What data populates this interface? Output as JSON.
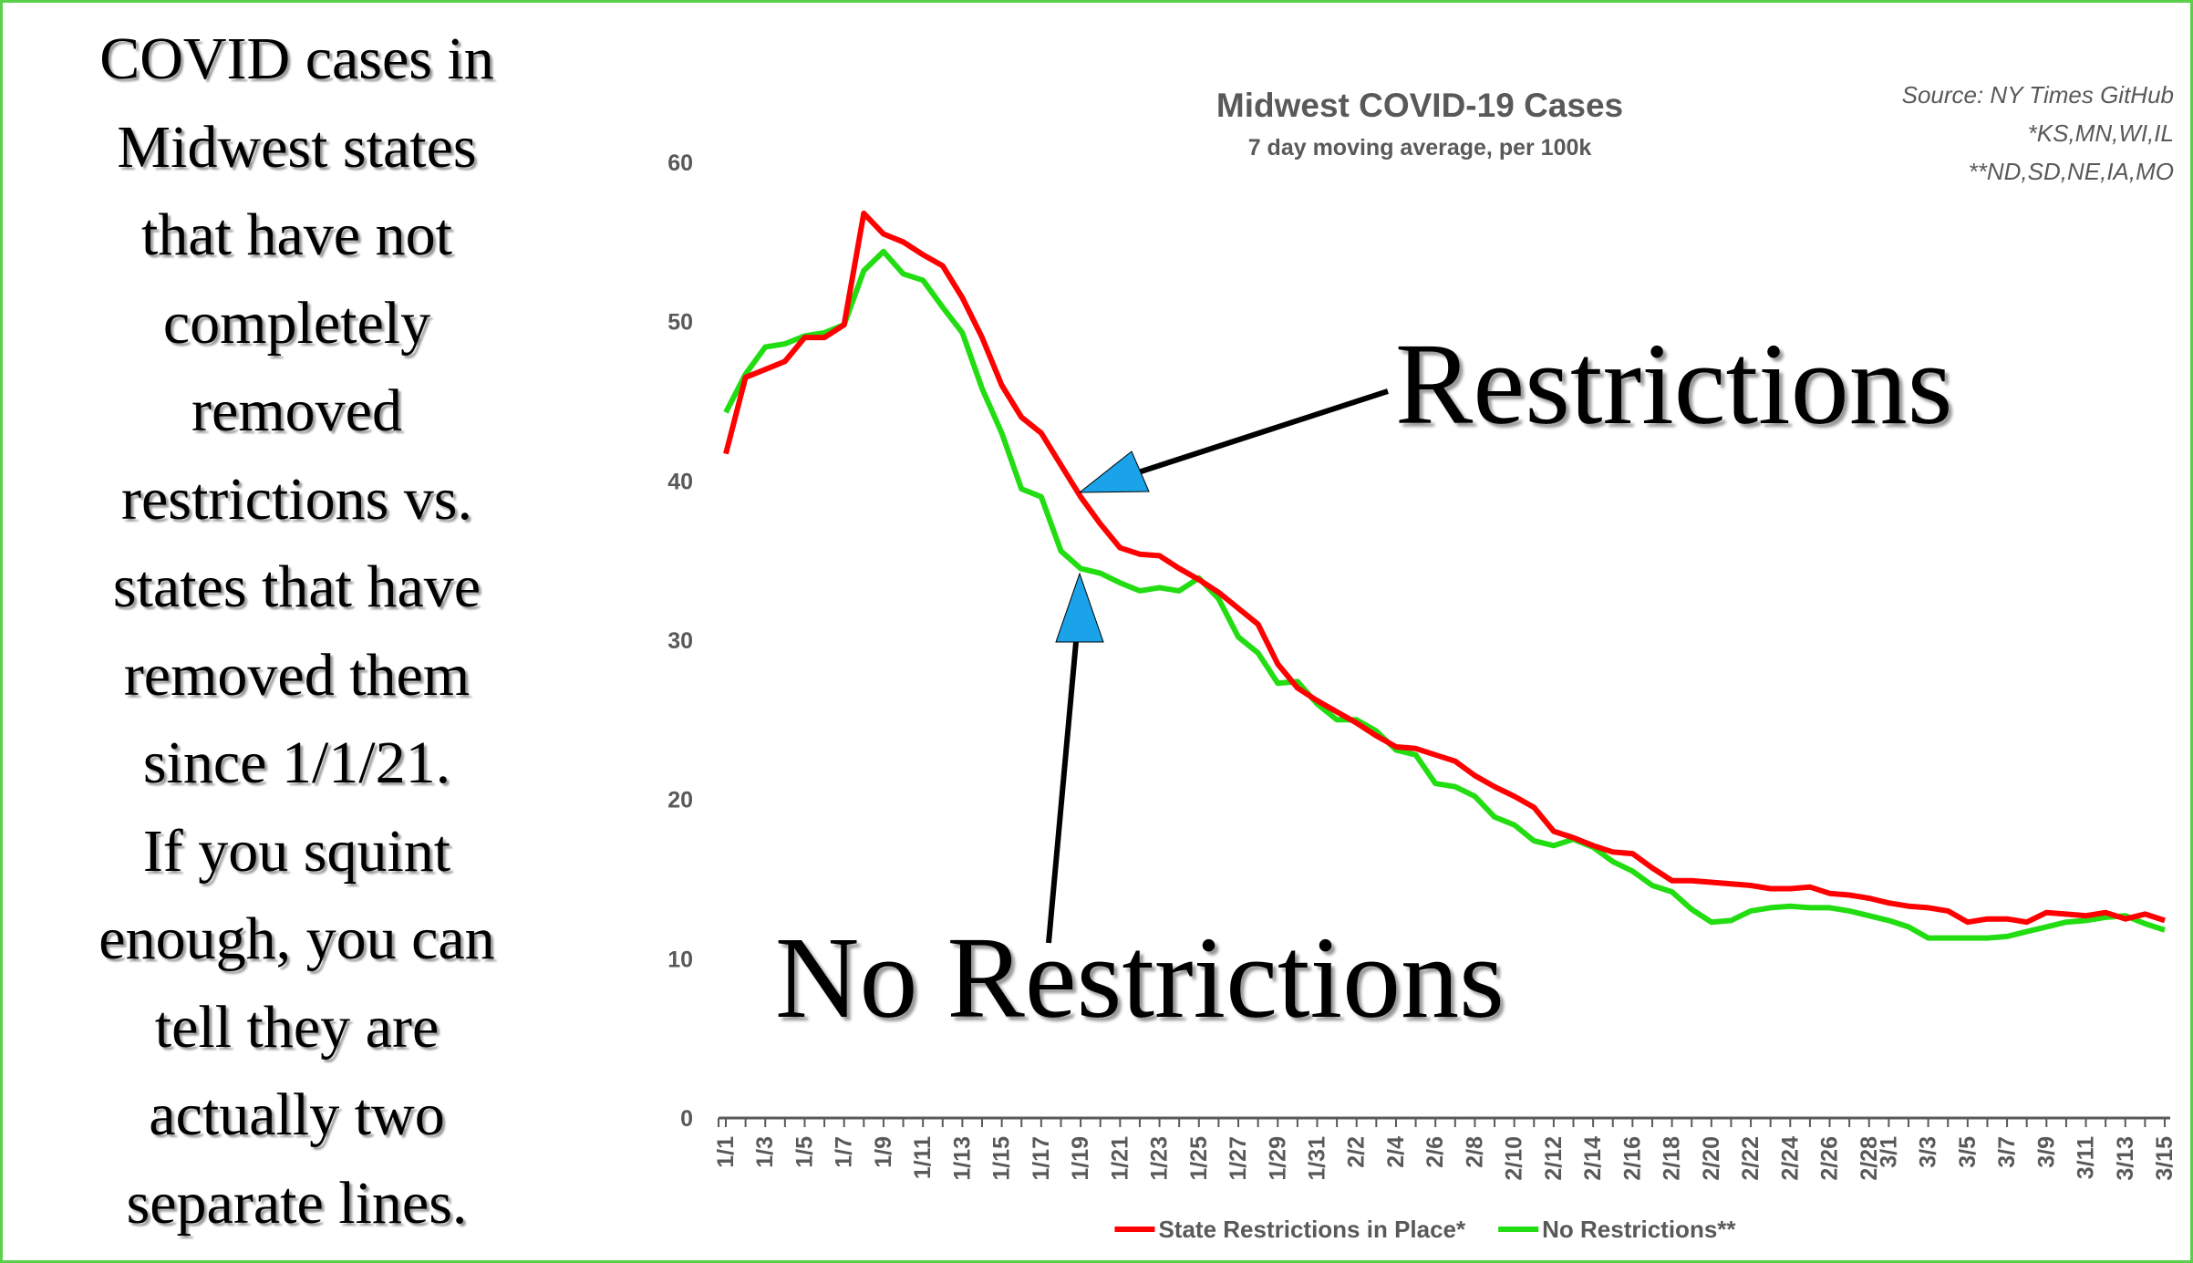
{
  "caption_lines": [
    "COVID cases in",
    "Midwest states",
    "that have not",
    "completely",
    "removed",
    "restrictions vs.",
    "states that have",
    "removed them",
    "since 1/1/21.",
    "If you squint",
    "enough, you can",
    "tell they are",
    "actually two",
    "separate lines."
  ],
  "annotations": {
    "restrictions": "Restrictions",
    "no_restrictions": "No Restrictions",
    "arrow_color": "#1aa3e8"
  },
  "chart_data": {
    "type": "line",
    "title": "Midwest COVID-19 Cases",
    "subtitle": "7 day moving average, per 100k",
    "source_notes": [
      "Source: NY Times GitHub",
      "*KS,MN,WI,IL",
      "**ND,SD,NE,IA,MO"
    ],
    "ylim": [
      0,
      60
    ],
    "yticks": [
      0,
      10,
      20,
      30,
      40,
      50,
      60
    ],
    "xlabel": "",
    "ylabel": "",
    "x_start": "1/1",
    "x_end": "3/15",
    "days": 74,
    "xtick_labels": [
      "1/1",
      "1/3",
      "1/5",
      "1/7",
      "1/9",
      "1/11",
      "1/13",
      "1/15",
      "1/17",
      "1/19",
      "1/21",
      "1/23",
      "1/25",
      "1/27",
      "1/29",
      "1/31",
      "2/2",
      "2/4",
      "2/6",
      "2/8",
      "2/10",
      "2/12",
      "2/14",
      "2/16",
      "2/18",
      "2/20",
      "2/22",
      "2/24",
      "2/26",
      "2/28",
      "3/1",
      "3/3",
      "3/5",
      "3/7",
      "3/9",
      "3/11",
      "3/13",
      "3/15"
    ],
    "xtick_day_index": [
      0,
      2,
      4,
      6,
      8,
      10,
      12,
      14,
      16,
      18,
      20,
      22,
      24,
      26,
      28,
      30,
      32,
      34,
      36,
      38,
      40,
      42,
      44,
      46,
      48,
      50,
      52,
      54,
      56,
      58,
      59,
      61,
      63,
      65,
      67,
      69,
      71,
      73
    ],
    "legend_position": "bottom",
    "series": [
      {
        "name": "State Restrictions in Place*",
        "color": "#ff0000",
        "values": [
          41.7,
          46.5,
          47,
          47.5,
          49,
          49,
          49.8,
          56.8,
          55.5,
          55,
          54.2,
          53.5,
          51.5,
          49,
          46,
          44,
          43,
          41,
          39,
          37.3,
          35.8,
          35.4,
          35.3,
          34.5,
          33.8,
          33,
          32,
          31,
          28.5,
          27,
          26.2,
          25.5,
          24.8,
          24,
          23.3,
          23.2,
          22.8,
          22.4,
          21.5,
          20.8,
          20.2,
          19.5,
          18,
          17.6,
          17.1,
          16.7,
          16.6,
          15.7,
          14.9,
          14.9,
          14.8,
          14.7,
          14.6,
          14.4,
          14.4,
          14.5,
          14.1,
          14,
          13.8,
          13.5,
          13.3,
          13.2,
          13,
          12.3,
          12.5,
          12.5,
          12.3,
          12.9,
          12.8,
          12.7,
          12.9,
          12.5,
          12.8,
          12.4
        ]
      },
      {
        "name": "No Restrictions**",
        "color": "#22dd11",
        "values": [
          44.3,
          46.7,
          48.4,
          48.6,
          49.1,
          49.3,
          49.8,
          53.2,
          54.4,
          53,
          52.6,
          50.9,
          49.3,
          45.8,
          43,
          39.5,
          39,
          35.6,
          34.5,
          34.2,
          33.6,
          33.1,
          33.3,
          33.1,
          33.9,
          32.6,
          30.2,
          29.2,
          27.3,
          27.4,
          26,
          25,
          25,
          24.3,
          23.1,
          22.8,
          21,
          20.8,
          20.2,
          18.9,
          18.4,
          17.4,
          17.1,
          17.5,
          17,
          16.1,
          15.5,
          14.6,
          14.2,
          13.1,
          12.3,
          12.4,
          13,
          13.2,
          13.3,
          13.2,
          13.2,
          13,
          12.7,
          12.4,
          12,
          11.3,
          11.3,
          11.3,
          11.3,
          11.4,
          11.7,
          12,
          12.3,
          12.4,
          12.6,
          12.7,
          12.2,
          11.8
        ]
      }
    ]
  }
}
